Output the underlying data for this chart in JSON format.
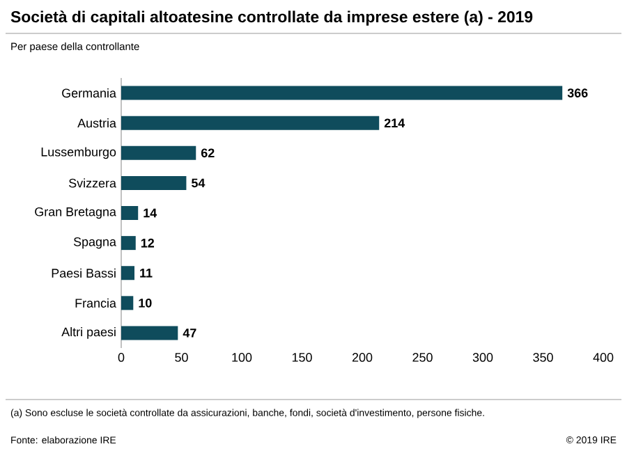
{
  "chart_data": {
    "type": "bar",
    "orientation": "horizontal",
    "title": "Società di capitali altoatesine controllate da imprese estere (a) - 2019",
    "subtitle": "Per paese della controllante",
    "categories": [
      "Germania",
      "Austria",
      "Lussemburgo",
      "Svizzera",
      "Gran Bretagna",
      "Spagna",
      "Paesi Bassi",
      "Francia",
      "Altri paesi"
    ],
    "values": [
      366,
      214,
      62,
      54,
      14,
      12,
      11,
      10,
      47
    ],
    "color": "#0f4c5c",
    "data_labels": true,
    "xlim": [
      0,
      400
    ],
    "xticks": [
      0,
      50,
      100,
      150,
      200,
      250,
      300,
      350,
      400
    ],
    "grid": false,
    "annotations": [
      "(a) Sono escluse le società controllate da assicurazioni, banche, fondi, società d'investimento, persone fisiche.",
      "Fonte: elaborazione IRE",
      "© 2019 IRE"
    ]
  }
}
